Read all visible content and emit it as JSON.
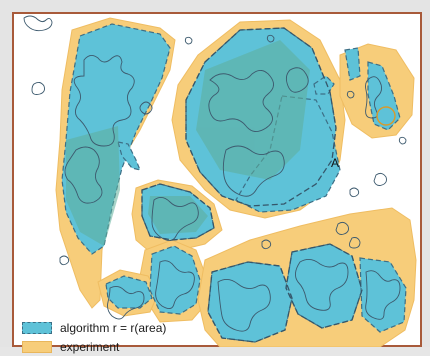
{
  "legend": {
    "items": [
      {
        "label": "algorithm r = r(area)",
        "color": "#5ec2d8"
      },
      {
        "label": "experiment",
        "color": "#f7cd7a"
      }
    ]
  },
  "annotations": {
    "point_a": "A"
  },
  "colors": {
    "experiment_fill": "#f7cd7a",
    "algorithm_fill": "#5ec2d8",
    "overlap_fill": "#5fae9a",
    "outline": "#3d5a6e",
    "frame_border": "#a85a3a"
  }
}
